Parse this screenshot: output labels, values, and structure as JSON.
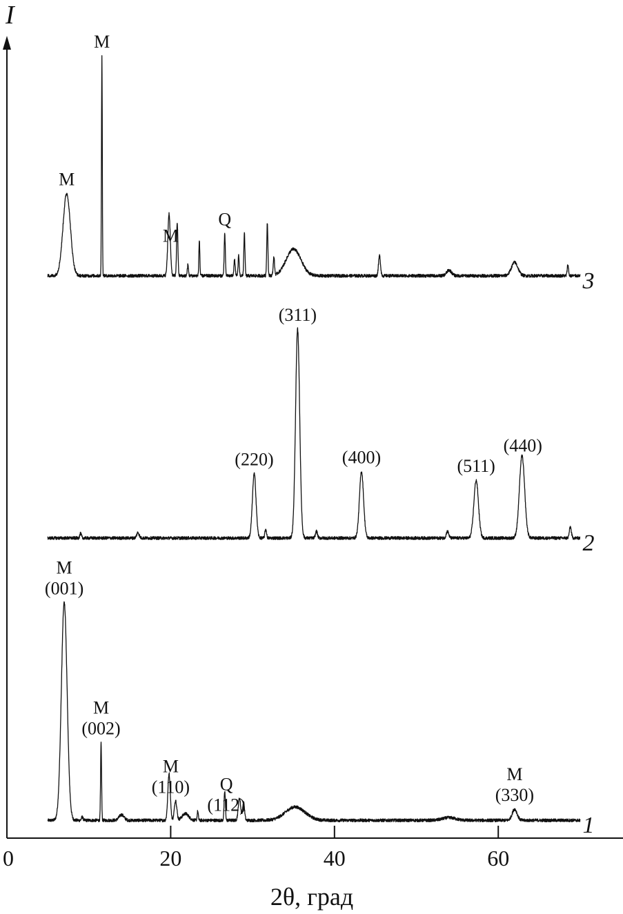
{
  "chart_data": {
    "type": "line",
    "title": "",
    "xlabel": "2θ, град",
    "ylabel": "I",
    "xlim": [
      0,
      75
    ],
    "ylim": [
      0,
      360
    ],
    "xticks": [
      0,
      20,
      40,
      60
    ],
    "grid": false,
    "legend": "none",
    "intensity_units": "arbitrary",
    "series": [
      {
        "name": "1",
        "offset": 8,
        "range": [
          5,
          70
        ],
        "peaks": [
          {
            "two_theta": 7.0,
            "intensity": 98,
            "width": 0.35
          },
          {
            "two_theta": 9.2,
            "intensity": 1.5,
            "width": 0.1
          },
          {
            "two_theta": 11.5,
            "intensity": 35,
            "width": 0.06
          },
          {
            "two_theta": 14.0,
            "intensity": 2.5,
            "width": 0.3
          },
          {
            "two_theta": 19.8,
            "intensity": 21,
            "width": 0.15
          },
          {
            "two_theta": 20.6,
            "intensity": 9,
            "width": 0.15
          },
          {
            "two_theta": 21.8,
            "intensity": 3,
            "width": 0.4
          },
          {
            "two_theta": 23.3,
            "intensity": 4,
            "width": 0.07
          },
          {
            "two_theta": 26.6,
            "intensity": 13,
            "width": 0.08
          },
          {
            "two_theta": 28.4,
            "intensity": 10,
            "width": 0.15
          },
          {
            "two_theta": 28.9,
            "intensity": 8,
            "width": 0.12
          },
          {
            "two_theta": 35.2,
            "intensity": 6,
            "width": 1.2
          },
          {
            "two_theta": 54.0,
            "intensity": 1.2,
            "width": 0.8
          },
          {
            "two_theta": 62.0,
            "intensity": 5,
            "width": 0.3
          }
        ],
        "annotations": [
          {
            "two_theta": 7.0,
            "lines": [
              "M",
              "(001)"
            ]
          },
          {
            "two_theta": 11.5,
            "lines": [
              "M",
              "(002)"
            ]
          },
          {
            "two_theta": 20.0,
            "lines": [
              "M",
              "(110)"
            ]
          },
          {
            "two_theta": 26.8,
            "lines": [
              "Q",
              "(112)"
            ]
          },
          {
            "two_theta": 62.0,
            "lines": [
              "M",
              "(330)"
            ]
          }
        ]
      },
      {
        "name": "2",
        "offset": 135,
        "range": [
          5,
          70
        ],
        "peaks": [
          {
            "two_theta": 9.0,
            "intensity": 2,
            "width": 0.1
          },
          {
            "two_theta": 16.0,
            "intensity": 2.5,
            "width": 0.15
          },
          {
            "two_theta": 30.2,
            "intensity": 29,
            "width": 0.22
          },
          {
            "two_theta": 31.6,
            "intensity": 4,
            "width": 0.1
          },
          {
            "two_theta": 35.5,
            "intensity": 94,
            "width": 0.25
          },
          {
            "two_theta": 37.8,
            "intensity": 3,
            "width": 0.12
          },
          {
            "two_theta": 43.3,
            "intensity": 30,
            "width": 0.25
          },
          {
            "two_theta": 53.8,
            "intensity": 3,
            "width": 0.15
          },
          {
            "two_theta": 57.3,
            "intensity": 26,
            "width": 0.28
          },
          {
            "two_theta": 62.9,
            "intensity": 37,
            "width": 0.32
          },
          {
            "two_theta": 68.8,
            "intensity": 5,
            "width": 0.12
          }
        ],
        "annotations": [
          {
            "two_theta": 30.2,
            "lines": [
              "(220)"
            ]
          },
          {
            "two_theta": 35.5,
            "lines": [
              "(311)"
            ]
          },
          {
            "two_theta": 43.3,
            "lines": [
              "(400)"
            ]
          },
          {
            "two_theta": 57.3,
            "lines": [
              "(511)"
            ]
          },
          {
            "two_theta": 63.0,
            "lines": [
              "(440)"
            ]
          }
        ]
      },
      {
        "name": "3",
        "offset": 253,
        "range": [
          5,
          70
        ],
        "peaks": [
          {
            "two_theta": 7.3,
            "intensity": 37,
            "width": 0.45
          },
          {
            "two_theta": 11.6,
            "intensity": 99,
            "width": 0.05
          },
          {
            "two_theta": 19.8,
            "intensity": 28,
            "width": 0.15
          },
          {
            "two_theta": 20.8,
            "intensity": 24,
            "width": 0.08
          },
          {
            "two_theta": 22.1,
            "intensity": 5,
            "width": 0.07
          },
          {
            "two_theta": 23.5,
            "intensity": 16,
            "width": 0.06
          },
          {
            "two_theta": 26.6,
            "intensity": 19,
            "width": 0.07
          },
          {
            "two_theta": 27.8,
            "intensity": 7,
            "width": 0.08
          },
          {
            "two_theta": 28.3,
            "intensity": 9,
            "width": 0.07
          },
          {
            "two_theta": 29.0,
            "intensity": 19,
            "width": 0.07
          },
          {
            "two_theta": 31.8,
            "intensity": 24,
            "width": 0.07
          },
          {
            "two_theta": 32.6,
            "intensity": 8,
            "width": 0.08
          },
          {
            "two_theta": 35.0,
            "intensity": 12,
            "width": 0.9
          },
          {
            "two_theta": 45.5,
            "intensity": 9,
            "width": 0.12
          },
          {
            "two_theta": 54.0,
            "intensity": 2.5,
            "width": 0.3
          },
          {
            "two_theta": 62.0,
            "intensity": 6,
            "width": 0.4
          },
          {
            "two_theta": 68.5,
            "intensity": 5,
            "width": 0.08
          }
        ],
        "annotations": [
          {
            "two_theta": 7.3,
            "lines": [
              "M"
            ]
          },
          {
            "two_theta": 11.6,
            "lines": [
              "M"
            ]
          },
          {
            "two_theta": 20.0,
            "lines": [
              "M"
            ]
          },
          {
            "two_theta": 26.6,
            "lines": [
              "Q"
            ]
          }
        ]
      }
    ]
  }
}
